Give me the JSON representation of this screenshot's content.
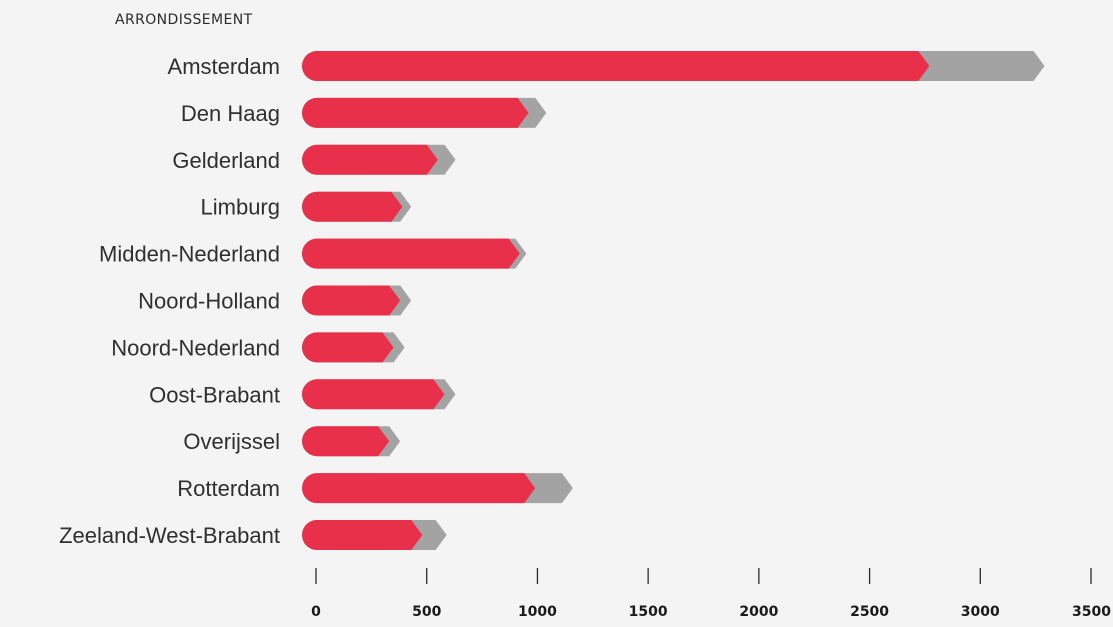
{
  "chart_data": {
    "type": "bar",
    "orientation": "horizontal",
    "stacked": true,
    "category_axis_title": "ARRONDISSEMENT",
    "categories": [
      "Amsterdam",
      "Den Haag",
      "Gelderland",
      "Limburg",
      "Midden-Nederland",
      "Noord-Holland",
      "Noord-Nederland",
      "Oost-Brabant",
      "Overijssel",
      "Rotterdam",
      "Zeeland-West-Brabant"
    ],
    "series": [
      {
        "color": "#e8304a",
        "values": [
          2770,
          960,
          550,
          390,
          920,
          380,
          350,
          580,
          330,
          990,
          480
        ]
      },
      {
        "color": "#a3a3a3",
        "values": [
          520,
          80,
          80,
          40,
          30,
          50,
          50,
          50,
          50,
          170,
          110
        ]
      }
    ],
    "xticks": [
      0,
      500,
      1000,
      1500,
      2000,
      2500,
      3000,
      3500
    ],
    "xlim": [
      0,
      3500
    ],
    "grid": false,
    "legend": "none"
  }
}
